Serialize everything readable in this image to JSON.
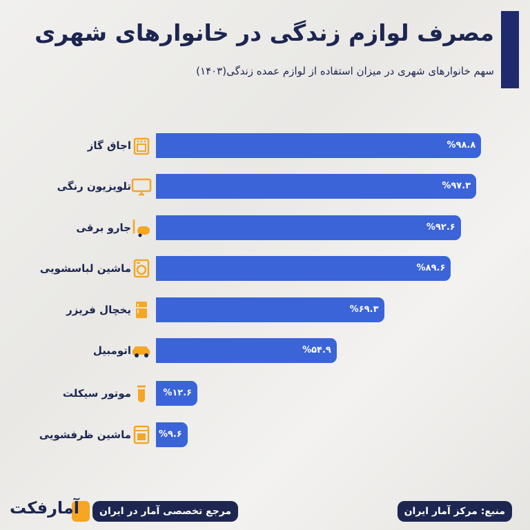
{
  "header": {
    "title": "مصرف لوازم زندگی در خانوارهای شهری",
    "subtitle": "سهم خانوارهای شهری در میزان استفاده از لوازم عمده زندگی(۱۴۰۳)"
  },
  "chart_data": {
    "type": "bar",
    "orientation": "horizontal",
    "title": "مصرف لوازم زندگی در خانوارهای شهری",
    "subtitle": "سهم خانوارهای شهری در میزان استفاده از لوازم عمده زندگی(۱۴۰۳)",
    "categories": [
      "اجاق گاز",
      "تلویزیون رنگی",
      "جارو برقی",
      "ماشین لباسشویی",
      "یخچال فریزر",
      "اتومبیل",
      "موتور سیکلت",
      "ماشین ظرفشویی"
    ],
    "icons": [
      "stove-icon",
      "tv-icon",
      "vacuum-icon",
      "washing-machine-icon",
      "fridge-icon",
      "car-icon",
      "motorcycle-icon",
      "dishwasher-icon"
    ],
    "values": [
      98.8,
      97.3,
      92.6,
      89.6,
      69.3,
      54.9,
      12.6,
      9.6
    ],
    "value_labels": [
      "%۹۸.۸",
      "%۹۷.۳",
      "%۹۲.۶",
      "%۸۹.۶",
      "%۶۹.۳",
      "%۵۴.۹",
      "%۱۲.۶",
      "%۹.۶"
    ],
    "unit": "%",
    "xlim": [
      0,
      100
    ],
    "grid": false
  },
  "colors": {
    "bar": "#3a64d8",
    "title": "#1c2650",
    "icon": "#f5a623",
    "accent": "#1e2a6b"
  },
  "footer": {
    "source": "منبع: مرکز آمار ایران",
    "tagline": "مرجع تخصصی آمار در ایران",
    "logo": "آمارفکت"
  }
}
